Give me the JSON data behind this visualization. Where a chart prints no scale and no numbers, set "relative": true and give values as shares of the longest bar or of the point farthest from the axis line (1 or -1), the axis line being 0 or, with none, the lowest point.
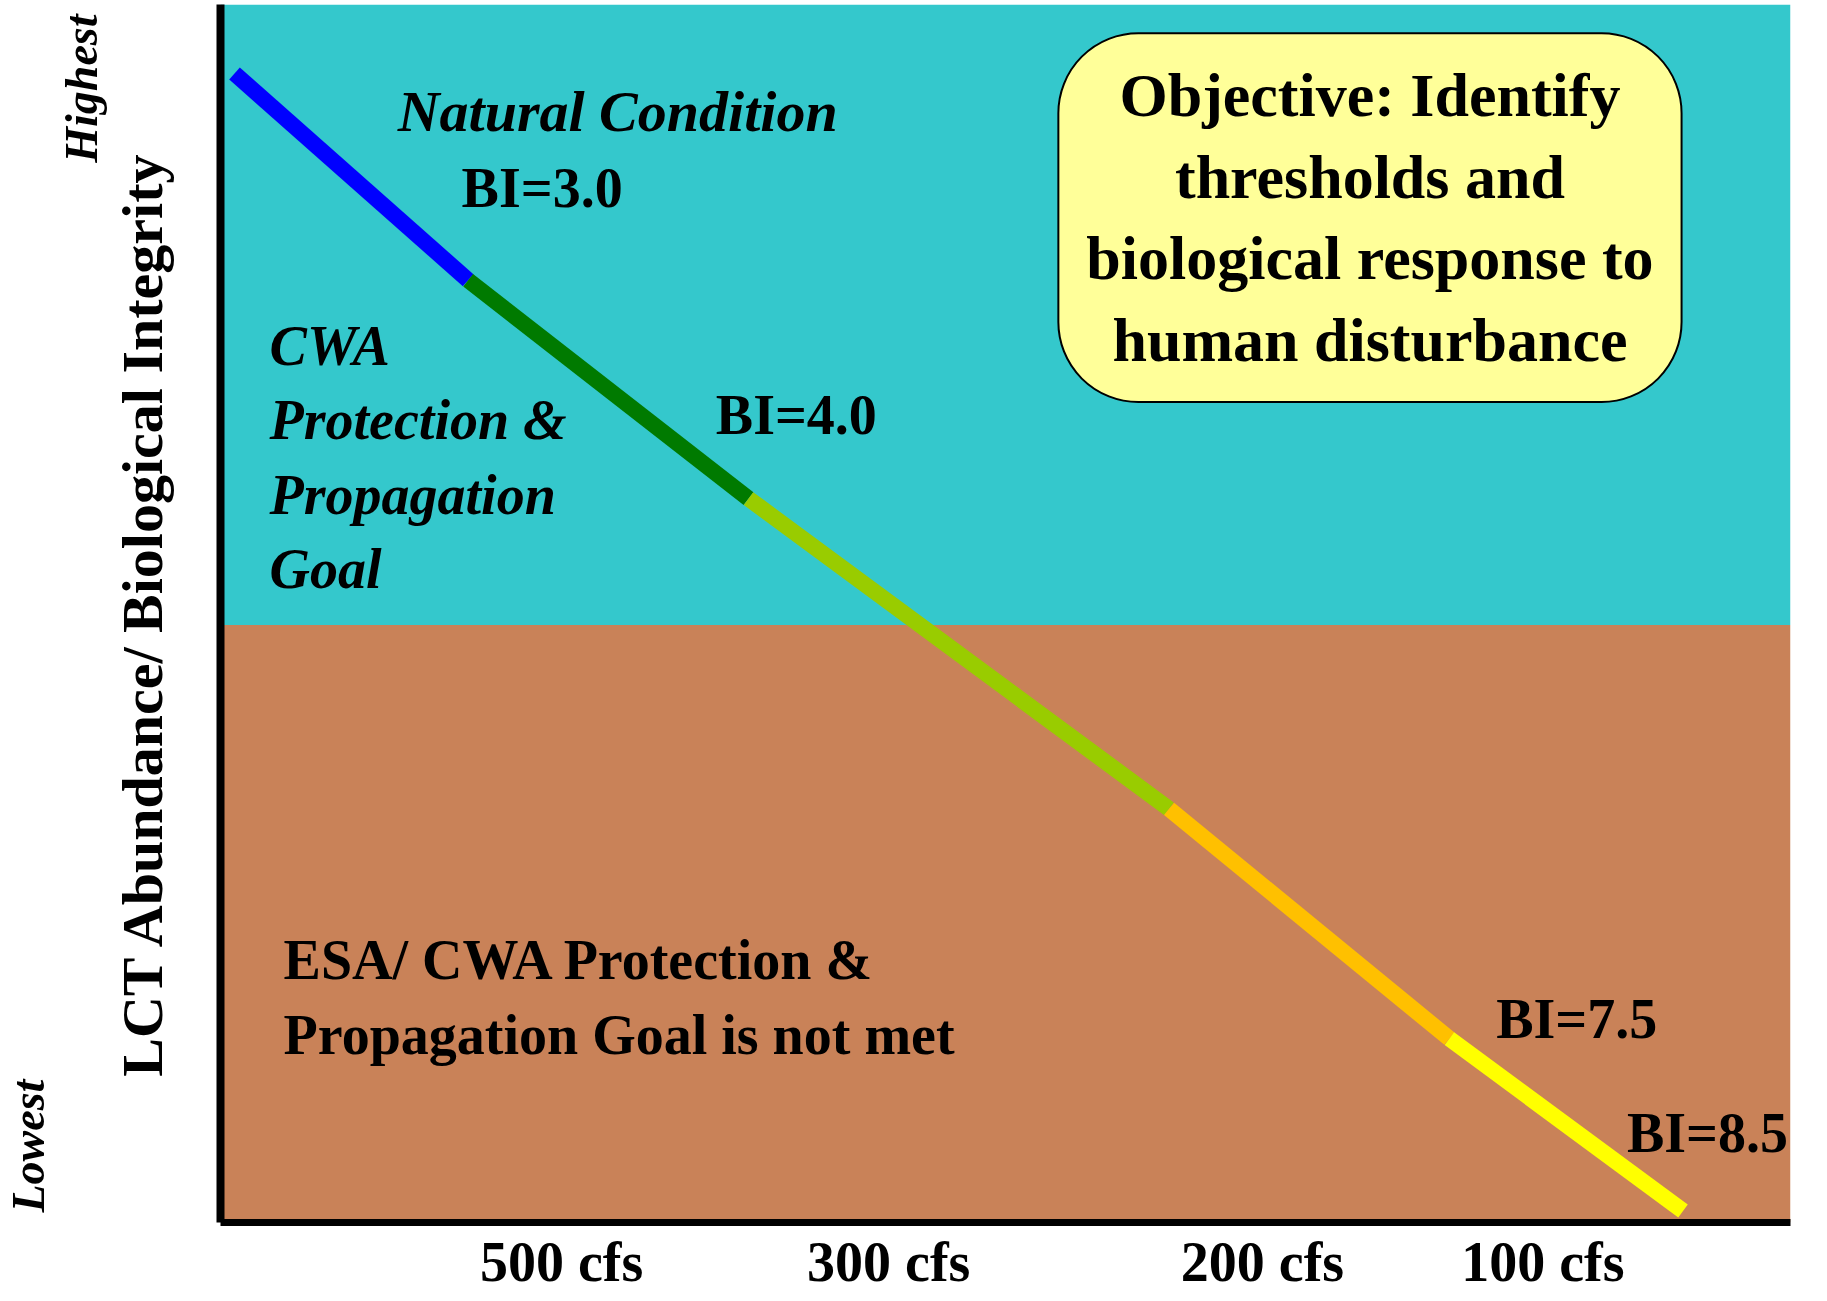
{
  "chart_data": {
    "type": "line",
    "relative": true,
    "ylabel": "LCT Abundance/ Biological Integrity",
    "categories": [
      null,
      null,
      null,
      null,
      null,
      null,
      null,
      "500 cfs",
      null,
      null,
      null,
      null,
      null,
      null,
      "300 cfs",
      null,
      null,
      null,
      null,
      null,
      null,
      null,
      "200 cfs",
      null,
      null,
      null,
      null,
      null,
      "100 cfs",
      null,
      null,
      null,
      null,
      null
    ],
    "series": [
      {
        "color": "#0000ff",
        "values": [
          1.0,
          null,
          null,
          null,
          null,
          0.82,
          null,
          null,
          null,
          null,
          null,
          null,
          null,
          null,
          null,
          null,
          null,
          null,
          null,
          null,
          null,
          null,
          null,
          null,
          null,
          null,
          null,
          null,
          null,
          null,
          null,
          null,
          null,
          null
        ]
      },
      {
        "color": "#007a00",
        "values": [
          null,
          null,
          null,
          null,
          null,
          0.82,
          null,
          null,
          null,
          null,
          null,
          0.63,
          null,
          null,
          null,
          null,
          null,
          null,
          null,
          null,
          null,
          null,
          null,
          null,
          null,
          null,
          null,
          null,
          null,
          null,
          null,
          null,
          null,
          null
        ]
      },
      {
        "color": "#99cc00",
        "values": [
          null,
          null,
          null,
          null,
          null,
          null,
          null,
          null,
          null,
          null,
          null,
          0.63,
          null,
          null,
          null,
          null,
          null,
          null,
          null,
          null,
          0.36,
          null,
          null,
          null,
          null,
          null,
          null,
          null,
          null,
          null,
          null,
          null,
          null,
          null
        ]
      },
      {
        "color": "#ffc000",
        "values": [
          null,
          null,
          null,
          null,
          null,
          null,
          null,
          null,
          null,
          null,
          null,
          null,
          null,
          null,
          null,
          null,
          null,
          null,
          null,
          null,
          0.36,
          null,
          null,
          null,
          null,
          null,
          0.16,
          null,
          null,
          null,
          null,
          null,
          null,
          null
        ]
      },
      {
        "color": "#ffff00",
        "values": [
          null,
          null,
          null,
          null,
          null,
          null,
          null,
          null,
          null,
          null,
          null,
          null,
          null,
          null,
          null,
          null,
          null,
          null,
          null,
          null,
          null,
          null,
          null,
          null,
          null,
          null,
          0.16,
          null,
          null,
          null,
          null,
          0.01,
          null,
          null
        ]
      }
    ],
    "bands": [
      {
        "axis": "y",
        "from": 0.52,
        "to": 1.06,
        "color": "#34c8cc"
      },
      {
        "axis": "y",
        "from": 0,
        "to": 0.52,
        "color": "#c98258"
      }
    ],
    "annotations": [
      "Highest",
      "Lowest",
      "Natural Condition",
      "BI=3.0",
      "CWA Protection & Propagation Goal",
      "BI=4.0",
      "Objective: Identify thresholds and biological response to human disturbance",
      "ESA/ CWA Protection & Propagation Goal is not met",
      "BI=7.5",
      "BI=8.5"
    ],
    "marker": "none",
    "line_style": "solid"
  }
}
